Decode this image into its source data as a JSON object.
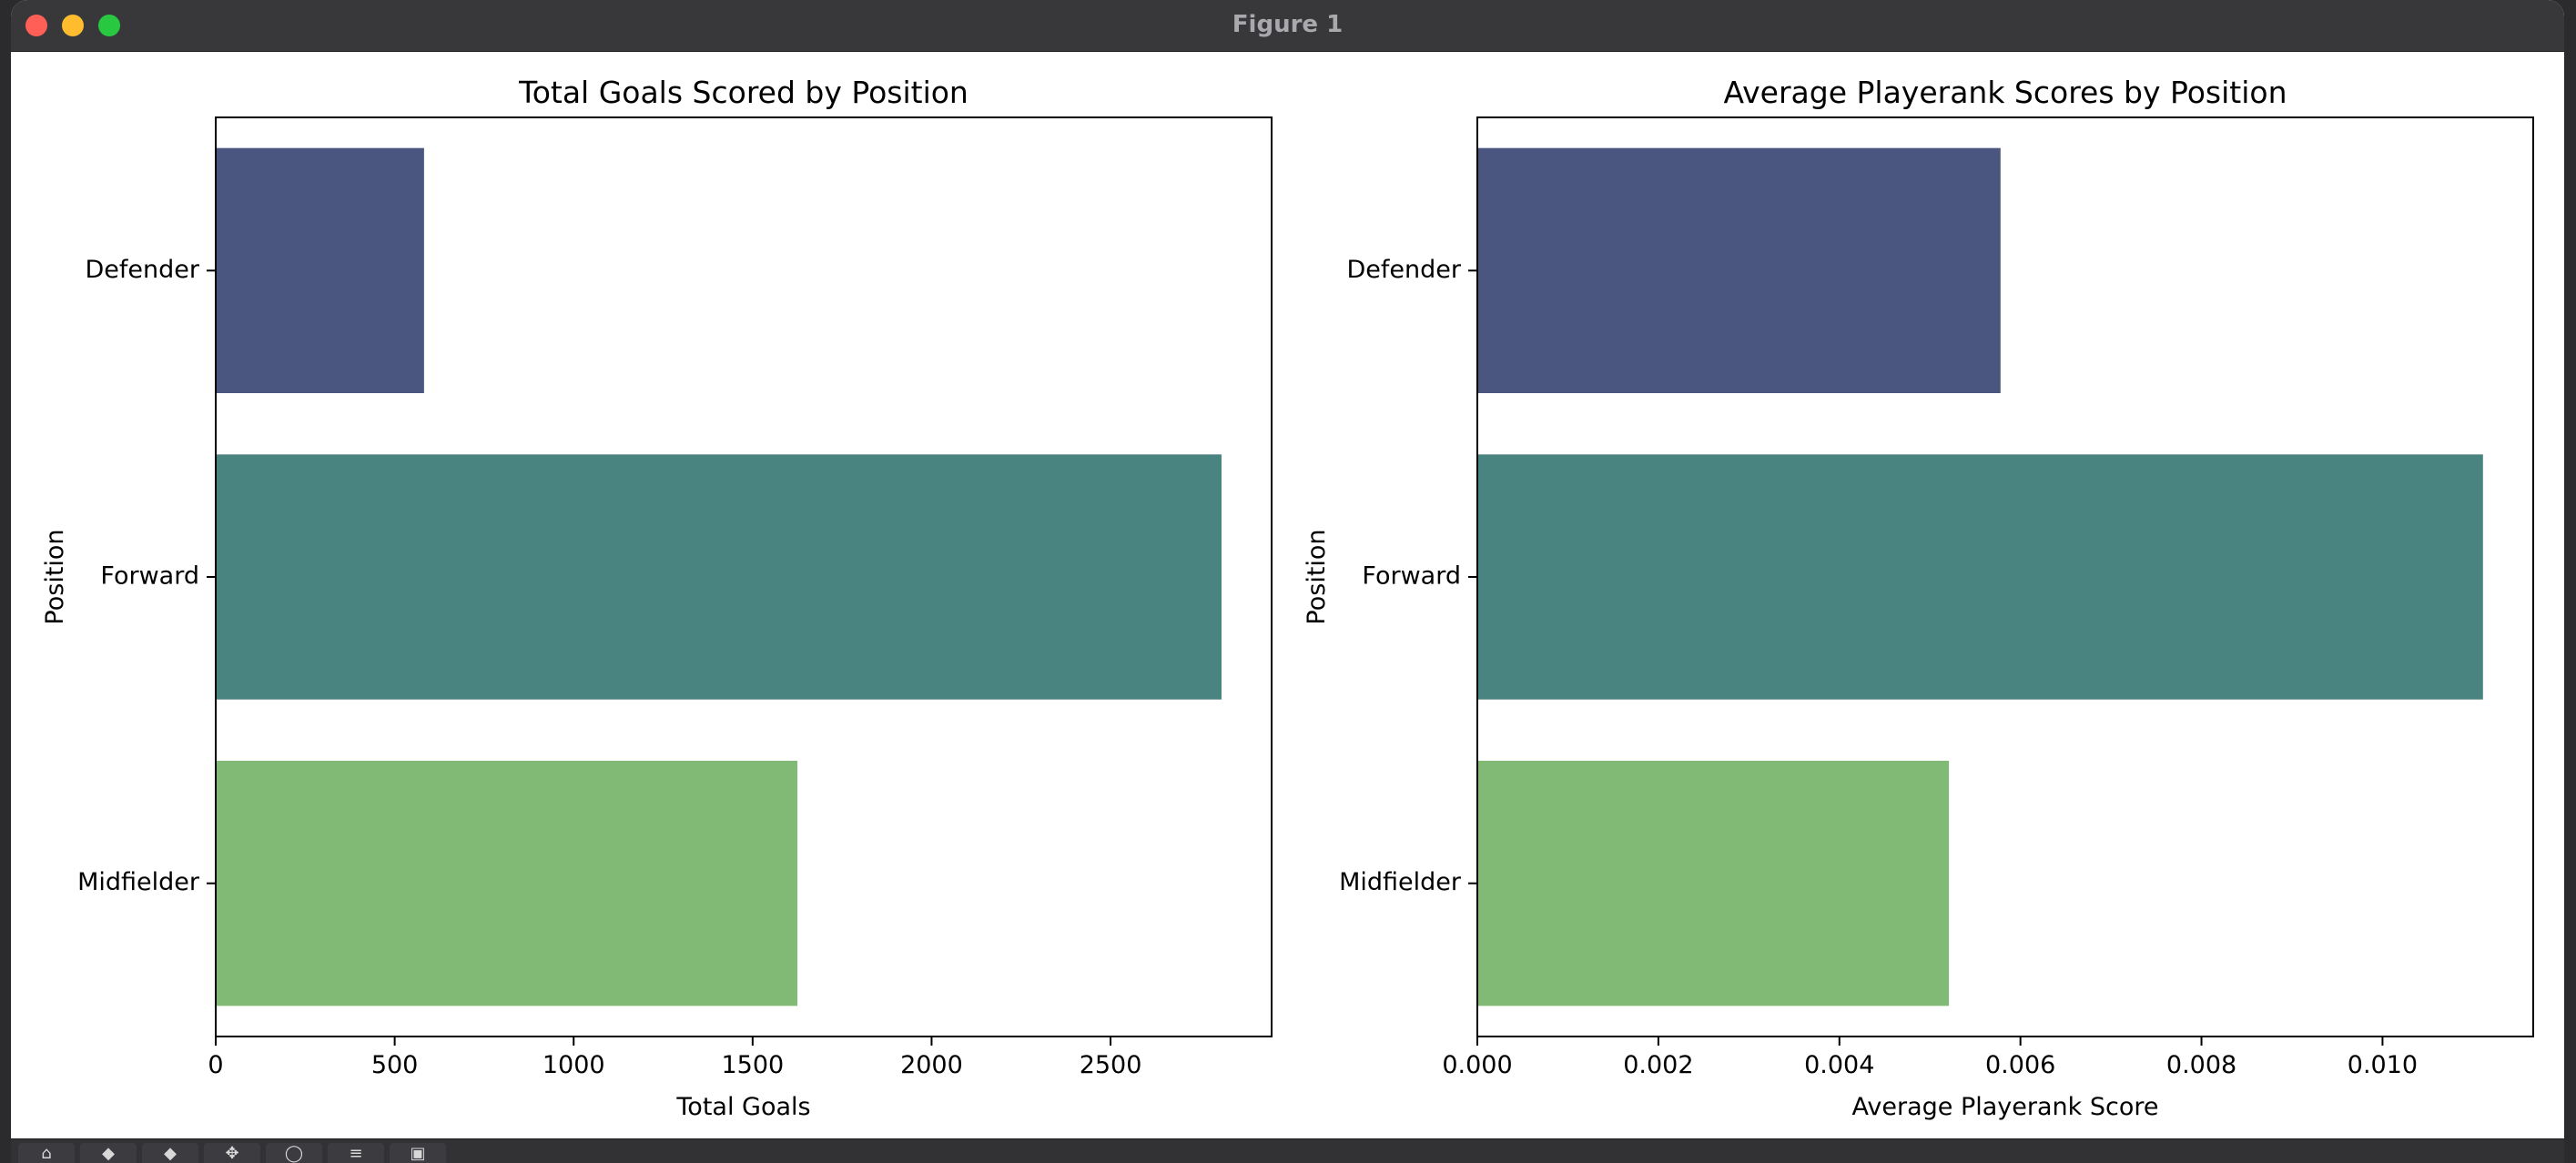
{
  "window": {
    "title": "Figure 1"
  },
  "toolbar": {
    "icons": [
      "home-icon",
      "back-icon",
      "forward-icon",
      "pan-icon",
      "zoom-icon",
      "configure-icon",
      "save-icon"
    ]
  },
  "colors": {
    "defender": "#4a567f",
    "forward": "#4a8480",
    "midfielder": "#80ba75"
  },
  "chart_data": [
    {
      "type": "bar",
      "orientation": "horizontal",
      "title": "Total Goals Scored by Position",
      "xlabel": "Total Goals",
      "ylabel": "Position",
      "categories": [
        "Defender",
        "Forward",
        "Midfielder"
      ],
      "values": [
        582,
        2810,
        1625
      ],
      "xlim": [
        0,
        2950
      ],
      "xticks": [
        0,
        500,
        1000,
        1500,
        2000,
        2500
      ],
      "xtick_labels": [
        "0",
        "500",
        "1000",
        "1500",
        "2000",
        "2500"
      ],
      "grid": false
    },
    {
      "type": "bar",
      "orientation": "horizontal",
      "title": "Average Playerank Scores by Position",
      "xlabel": "Average Playerank Score",
      "ylabel": "Position",
      "categories": [
        "Defender",
        "Forward",
        "Midfielder"
      ],
      "values": [
        0.00578,
        0.01111,
        0.00521
      ],
      "xlim": [
        0,
        0.011665
      ],
      "xticks": [
        0,
        0.002,
        0.004,
        0.006,
        0.008,
        0.01
      ],
      "xtick_labels": [
        "0.000",
        "0.002",
        "0.004",
        "0.006",
        "0.008",
        "0.010"
      ],
      "grid": false
    }
  ]
}
